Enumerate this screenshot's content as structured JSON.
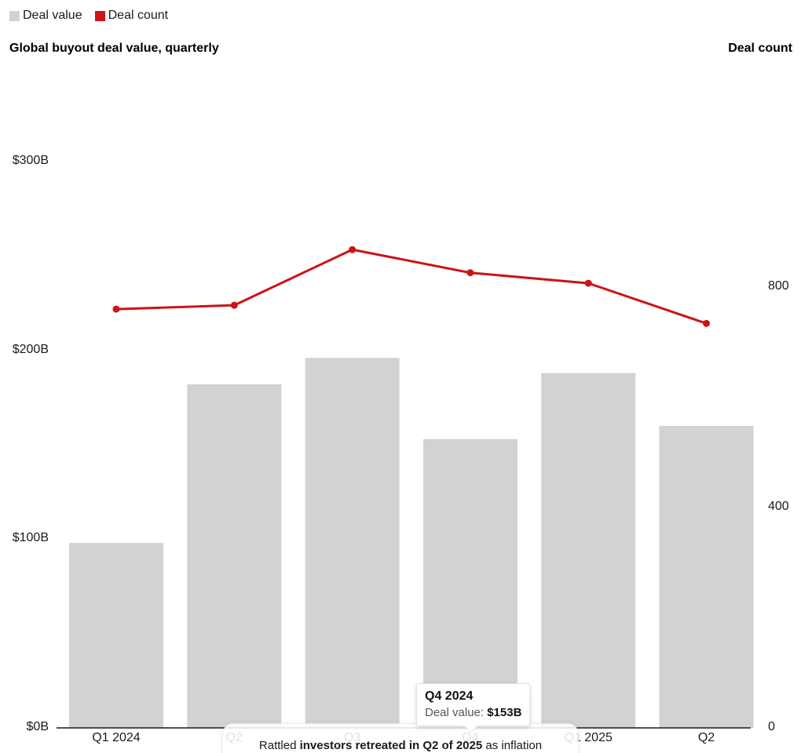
{
  "legend": {
    "items": [
      {
        "label": "Deal value",
        "color": "#d2d2d0"
      },
      {
        "label": "Deal count",
        "color": "#cc1417"
      }
    ]
  },
  "header": {
    "left_title": "Global buyout deal value, quarterly",
    "right_title": "Deal count"
  },
  "chart_data": {
    "type": "bar",
    "subtype": "bar+line combo",
    "title": "Global buyout deal value, quarterly",
    "categories": [
      "Q1 2024",
      "Q2",
      "Q3",
      "Q4",
      "Q1 2025",
      "Q2"
    ],
    "series": [
      {
        "name": "Deal value",
        "type": "bar",
        "axis": "left",
        "unit": "$B",
        "color": "#d2d2d0",
        "values": [
          98,
          182,
          196,
          153,
          188,
          160
        ]
      },
      {
        "name": "Deal count",
        "type": "line",
        "axis": "right",
        "color": "#cc1417",
        "values": [
          760,
          767,
          868,
          826,
          807,
          734
        ]
      }
    ],
    "left_axis": {
      "ticks": [
        "$0B",
        "$100B",
        "$200B",
        "$300B"
      ],
      "tick_values": [
        0,
        100,
        200,
        300
      ],
      "range": [
        0,
        300
      ]
    },
    "right_axis": {
      "label": "Deal count",
      "ticks": [
        "0",
        "400",
        "800"
      ],
      "tick_values": [
        0,
        400,
        800
      ],
      "range": [
        0,
        800
      ]
    },
    "grid": false,
    "legend_position": "top-left"
  },
  "tooltip": {
    "title": "Q4 2024",
    "label": "Deal value:",
    "value": "$153B"
  },
  "caption": {
    "pre": "Rattled ",
    "bold": "investors retreated in Q2 of 2025",
    "post": " as inflation"
  }
}
